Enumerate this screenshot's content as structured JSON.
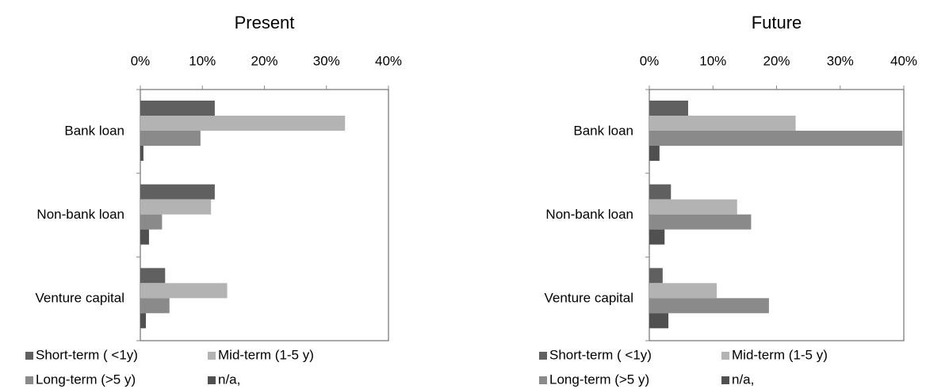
{
  "chart_data": [
    {
      "type": "bar",
      "orientation": "horizontal",
      "title": "Present",
      "categories": [
        "Bank loan",
        "Non-bank loan",
        "Venture capital"
      ],
      "series": [
        {
          "name": "Short-term ( <1y)",
          "color": "#606060",
          "values": [
            12,
            12,
            4
          ]
        },
        {
          "name": "Mid-term (1-5 y)",
          "color": "#b3b3b3",
          "values": [
            33,
            11.4,
            14
          ]
        },
        {
          "name": "Long-term (>5 y)",
          "color": "#8a8a8a",
          "values": [
            9.7,
            3.5,
            4.7
          ]
        },
        {
          "name": "n/a,",
          "color": "#505050",
          "values": [
            0.5,
            1.4,
            0.9
          ]
        }
      ],
      "xlim": [
        0,
        40
      ],
      "xticks": [
        {
          "value": 0,
          "label": "0%"
        },
        {
          "value": 10,
          "label": "10%"
        },
        {
          "value": 20,
          "label": "20%"
        },
        {
          "value": 30,
          "label": "30%"
        },
        {
          "value": 40,
          "label": "40%"
        }
      ],
      "grid": false,
      "legend": "bottom"
    },
    {
      "type": "bar",
      "orientation": "horizontal",
      "title": "Future",
      "categories": [
        "Bank loan",
        "Non-bank loan",
        "Venture capital"
      ],
      "series": [
        {
          "name": "Short-term ( <1y)",
          "color": "#606060",
          "values": [
            6.1,
            3.4,
            2.1
          ]
        },
        {
          "name": "Mid-term (1-5 y)",
          "color": "#b3b3b3",
          "values": [
            23,
            13.8,
            10.6
          ]
        },
        {
          "name": "Long-term (>5 y)",
          "color": "#8a8a8a",
          "values": [
            39.8,
            16,
            18.8
          ]
        },
        {
          "name": "n/a,",
          "color": "#505050",
          "values": [
            1.6,
            2.4,
            3
          ]
        }
      ],
      "xlim": [
        0,
        40
      ],
      "xticks": [
        {
          "value": 0,
          "label": "0%"
        },
        {
          "value": 10,
          "label": "10%"
        },
        {
          "value": 20,
          "label": "20%"
        },
        {
          "value": 30,
          "label": "30%"
        },
        {
          "value": 40,
          "label": "40%"
        }
      ],
      "grid": false,
      "legend": "bottom"
    }
  ]
}
